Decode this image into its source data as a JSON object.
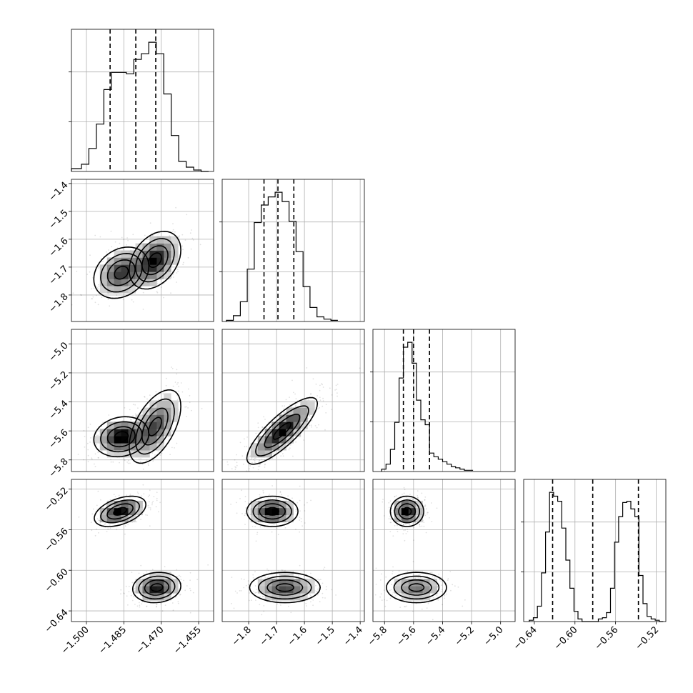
{
  "chart_data": {
    "type": "corner",
    "title": "",
    "parameters": [
      {
        "index": 0,
        "range": [
          -1.506,
          -1.449
        ],
        "ticks": [
          -1.5,
          -1.485,
          -1.47,
          -1.455
        ],
        "tick_labels": [
          "−1.500",
          "−1.485",
          "−1.470",
          "−1.455"
        ],
        "quantiles": [
          -1.4905,
          -1.4802,
          -1.4722
        ],
        "modes": [
          {
            "center": -1.486,
            "sd": 0.0048,
            "weight": 0.45
          },
          {
            "center": -1.4725,
            "sd": 0.0045,
            "weight": 0.55
          }
        ]
      },
      {
        "index": 1,
        "range": [
          -1.895,
          -1.385
        ],
        "ticks": [
          -1.8,
          -1.7,
          -1.6,
          -1.5,
          -1.4
        ],
        "tick_labels": [
          "−1.8",
          "−1.7",
          "−1.6",
          "−1.5",
          "−1.4"
        ],
        "quantiles": [
          -1.745,
          -1.695,
          -1.638
        ],
        "modes": [
          {
            "center": -1.725,
            "sd": 0.04,
            "weight": 0.45
          },
          {
            "center": -1.675,
            "sd": 0.04,
            "weight": 0.55
          }
        ]
      },
      {
        "index": 2,
        "range": [
          -5.88,
          -4.9
        ],
        "ticks": [
          -5.8,
          -5.6,
          -5.4,
          -5.2,
          -5.0
        ],
        "tick_labels": [
          "−5.8",
          "−5.6",
          "−5.4",
          "−5.2",
          "−5.0"
        ],
        "quantiles": [
          -5.67,
          -5.6,
          -5.49
        ],
        "modes": [
          {
            "center": -5.63,
            "sd": 0.06,
            "weight": 0.8
          },
          {
            "center": -5.4,
            "sd": 0.15,
            "weight": 0.2
          }
        ]
      },
      {
        "index": 3,
        "range": [
          -0.6505,
          -0.5105
        ],
        "ticks": [
          -0.64,
          -0.6,
          -0.56,
          -0.52
        ],
        "tick_labels": [
          "−0.64",
          "−0.60",
          "−0.56",
          "−0.52"
        ],
        "quantiles": [
          -0.622,
          -0.5825,
          -0.5375
        ],
        "modes": [
          {
            "center": -0.617,
            "sd": 0.0065,
            "weight": 0.5
          },
          {
            "center": -0.542,
            "sd": 0.0065,
            "weight": 0.5
          }
        ]
      }
    ],
    "histograms": [
      {
        "parameter": 0,
        "bin_edges": [
          -1.506,
          -1.502,
          -1.499,
          -1.496,
          -1.493,
          -1.49,
          -1.487,
          -1.484,
          -1.481,
          -1.478,
          -1.475,
          -1.472,
          -1.469,
          -1.466,
          -1.463,
          -1.46,
          -1.457,
          -1.454,
          -1.451
        ],
        "counts": [
          2,
          5,
          16,
          33,
          57,
          69,
          69,
          68,
          78,
          82,
          90,
          82,
          54,
          25,
          7,
          3,
          1,
          0
        ]
      },
      {
        "parameter": 1,
        "bin_edges": [
          -1.88,
          -1.855,
          -1.83,
          -1.805,
          -1.78,
          -1.755,
          -1.73,
          -1.705,
          -1.68,
          -1.655,
          -1.63,
          -1.605,
          -1.58,
          -1.555,
          -1.53,
          -1.505,
          -1.48
        ],
        "counts": [
          1,
          5,
          17,
          45,
          85,
          100,
          107,
          111,
          103,
          86,
          60,
          30,
          12,
          4,
          2,
          1
        ]
      },
      {
        "parameter": 2,
        "bin_edges": [
          -5.82,
          -5.79,
          -5.76,
          -5.73,
          -5.7,
          -5.67,
          -5.64,
          -5.61,
          -5.58,
          -5.55,
          -5.52,
          -5.49,
          -5.46,
          -5.43,
          -5.4,
          -5.37,
          -5.34,
          -5.31,
          -5.28,
          -5.25,
          -5.22,
          -5.19
        ],
        "counts": [
          2,
          6,
          18,
          40,
          76,
          101,
          105,
          88,
          58,
          42,
          38,
          15,
          12,
          10,
          8,
          6,
          4,
          3,
          2,
          1,
          1
        ]
      },
      {
        "parameter": 3,
        "bin_edges": [
          -0.645,
          -0.641,
          -0.637,
          -0.633,
          -0.629,
          -0.625,
          -0.621,
          -0.617,
          -0.613,
          -0.609,
          -0.605,
          -0.601,
          -0.597,
          -0.593,
          -0.589,
          -0.585,
          -0.581,
          -0.577,
          -0.573,
          -0.569,
          -0.565,
          -0.561,
          -0.557,
          -0.553,
          -0.549,
          -0.545,
          -0.541,
          -0.537,
          -0.533,
          -0.529,
          -0.525,
          -0.521,
          -0.517,
          -0.513
        ],
        "counts": [
          1,
          3,
          12,
          38,
          70,
          101,
          98,
          94,
          73,
          48,
          26,
          8,
          2,
          0,
          0,
          0,
          0,
          2,
          3,
          7,
          26,
          62,
          82,
          93,
          94,
          88,
          82,
          36,
          14,
          4,
          2,
          1,
          0
        ]
      }
    ],
    "grid": true,
    "contour_levels_sigma": [
      0.5,
      1.0,
      1.5,
      2.0
    ]
  }
}
